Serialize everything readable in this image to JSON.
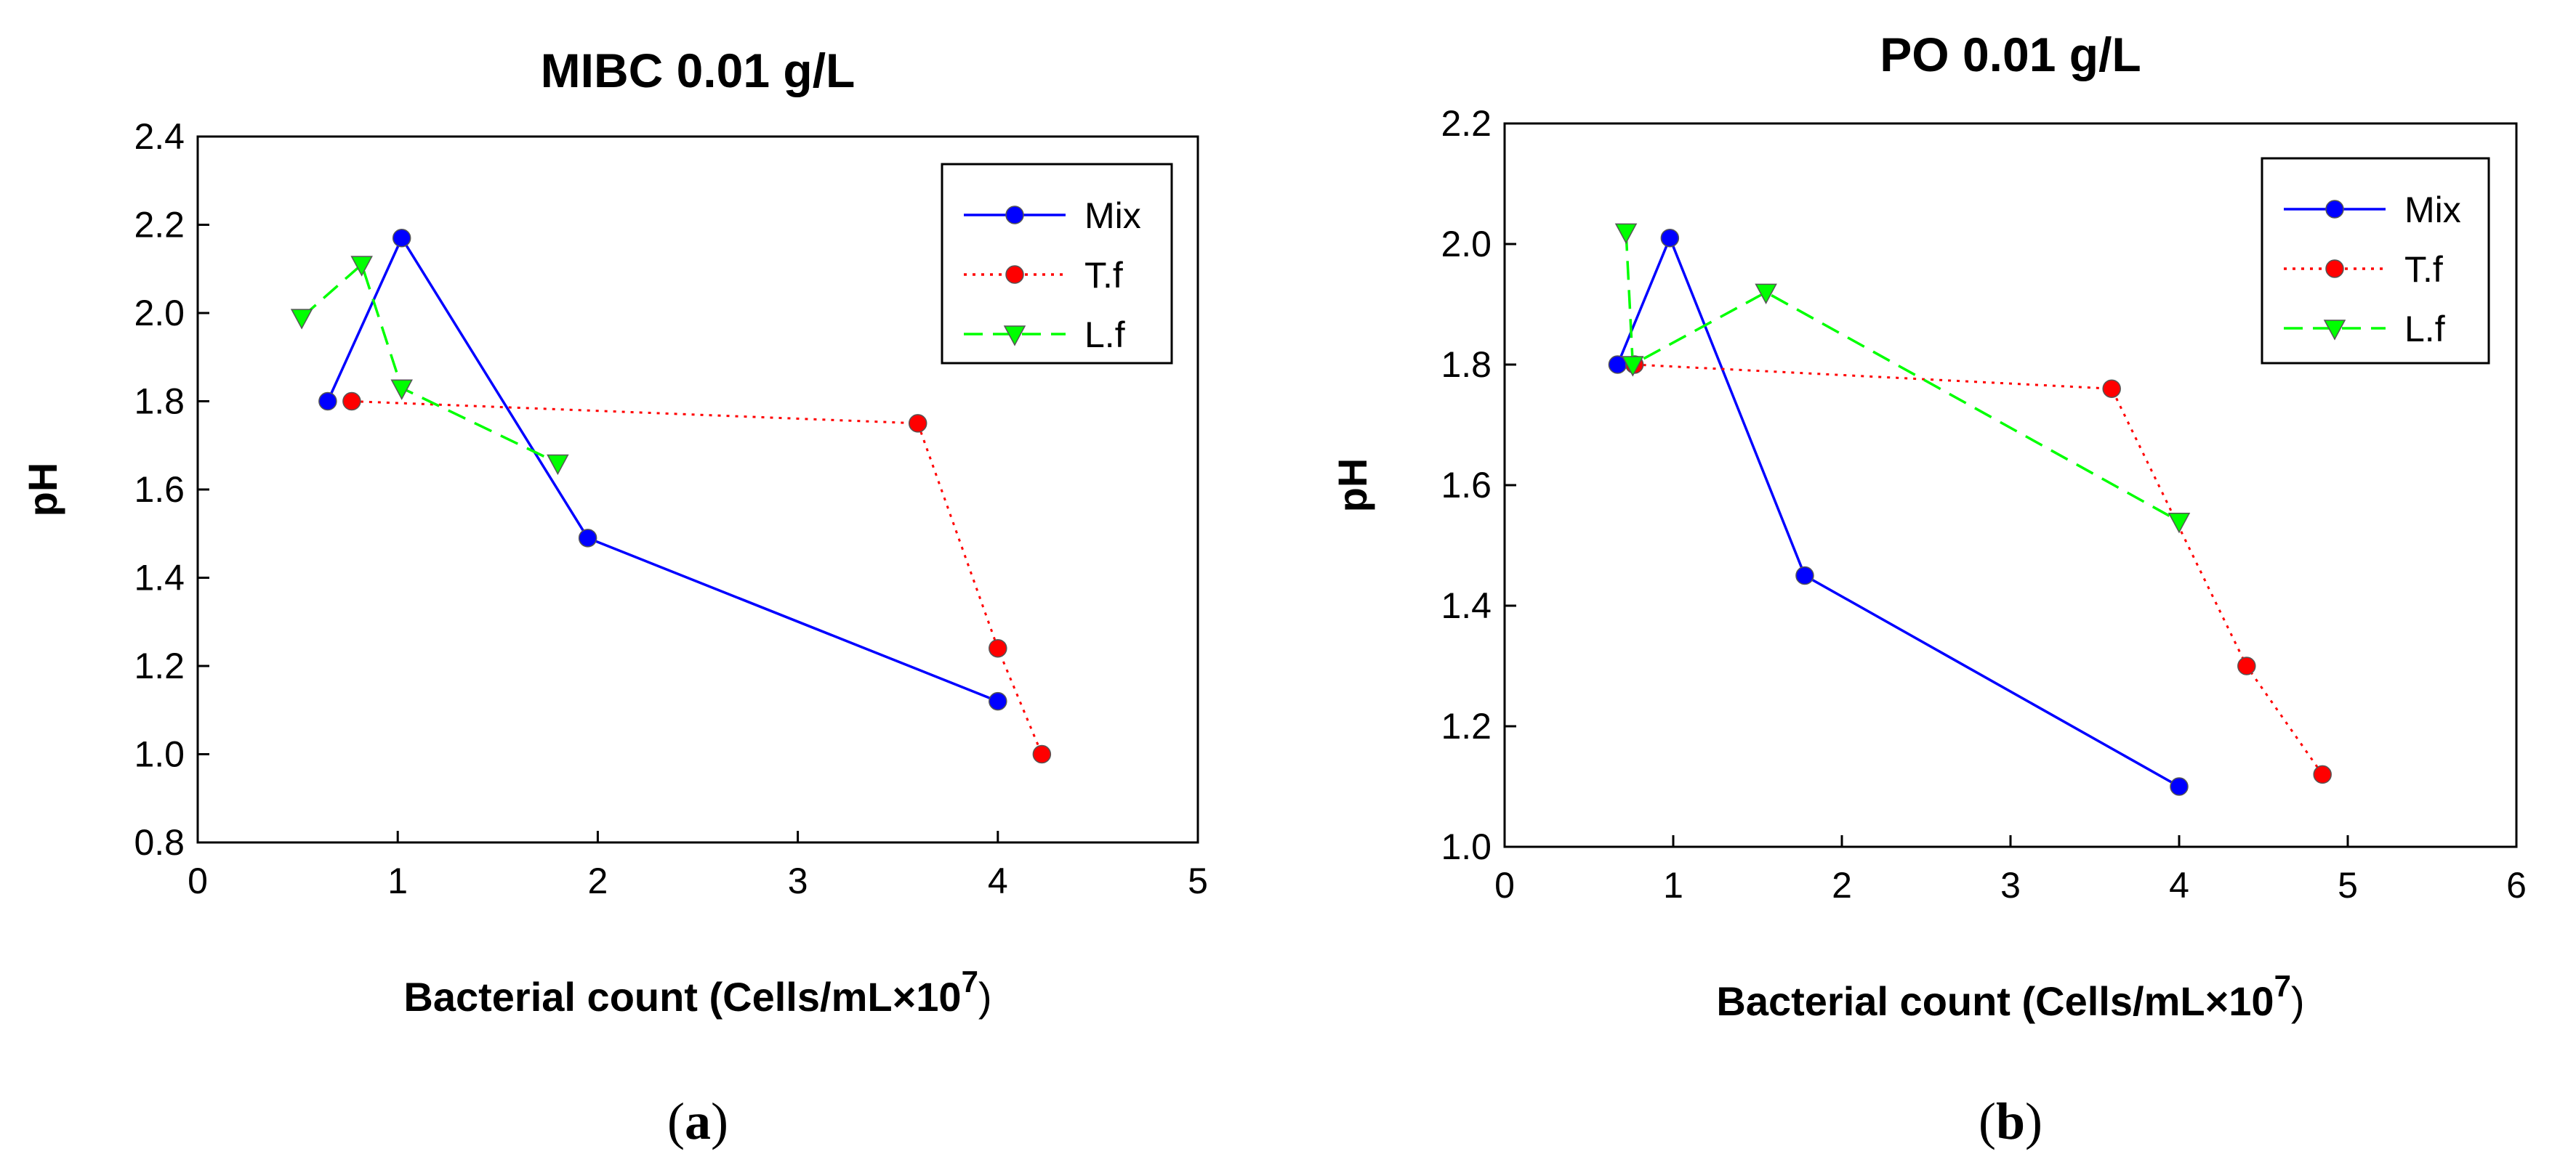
{
  "chart_data": [
    {
      "type": "line",
      "title": "MIBC 0.01 g/L",
      "xlabel_prefix": "Bacterial count (Cells/mL×10",
      "xlabel_exponent": "7",
      "xlabel_suffix": ")",
      "ylabel": "pH",
      "xlim": [
        0,
        5
      ],
      "ylim": [
        0.8,
        2.4
      ],
      "xticks": [
        "0",
        "1",
        "2",
        "3",
        "4",
        "5"
      ],
      "yticks": [
        "0.8",
        "1.0",
        "1.2",
        "1.4",
        "1.6",
        "1.8",
        "2.0",
        "2.2",
        "2.4"
      ],
      "legend_position": "top-right",
      "caption_prefix": "(",
      "caption_letter": "a",
      "caption_suffix": ")",
      "series": [
        {
          "name": "Mix",
          "color": "#0000ff",
          "line_style": "solid",
          "marker": "circle",
          "x": [
            0.65,
            1.02,
            1.95,
            4.0
          ],
          "y": [
            1.8,
            2.17,
            1.49,
            1.12
          ]
        },
        {
          "name": "T.f",
          "color": "#ff0000",
          "line_style": "dotted",
          "marker": "circle",
          "x": [
            0.77,
            3.6,
            4.0,
            4.22
          ],
          "y": [
            1.8,
            1.75,
            1.24,
            1.0
          ]
        },
        {
          "name": "L.f",
          "color": "#00ff00",
          "line_style": "dashed",
          "marker": "triangle-down",
          "x": [
            0.52,
            0.82,
            1.02,
            1.8
          ],
          "y": [
            1.99,
            2.11,
            1.83,
            1.66
          ]
        }
      ]
    },
    {
      "type": "line",
      "title": "PO 0.01 g/L",
      "xlabel_prefix": "Bacterial count (Cells/mL×10",
      "xlabel_exponent": "7",
      "xlabel_suffix": ")",
      "ylabel": "pH",
      "xlim": [
        0,
        6
      ],
      "ylim": [
        1.0,
        2.2
      ],
      "xticks": [
        "0",
        "1",
        "2",
        "3",
        "4",
        "5",
        "6"
      ],
      "yticks": [
        "1.0",
        "1.2",
        "1.4",
        "1.6",
        "1.8",
        "2.0",
        "2.2"
      ],
      "legend_position": "top-right",
      "caption_prefix": "(",
      "caption_letter": "b",
      "caption_suffix": ")",
      "series": [
        {
          "name": "Mix",
          "color": "#0000ff",
          "line_style": "solid",
          "marker": "circle",
          "x": [
            0.67,
            0.98,
            1.78,
            4.0
          ],
          "y": [
            1.8,
            2.01,
            1.45,
            1.1
          ]
        },
        {
          "name": "T.f",
          "color": "#ff0000",
          "line_style": "dotted",
          "marker": "circle",
          "x": [
            0.77,
            3.6,
            4.4,
            4.85
          ],
          "y": [
            1.8,
            1.76,
            1.3,
            1.12
          ]
        },
        {
          "name": "L.f",
          "color": "#00ff00",
          "line_style": "dashed",
          "marker": "triangle-down",
          "x": [
            0.72,
            0.76,
            1.55,
            4.0
          ],
          "y": [
            2.02,
            1.8,
            1.92,
            1.54
          ]
        }
      ]
    }
  ]
}
